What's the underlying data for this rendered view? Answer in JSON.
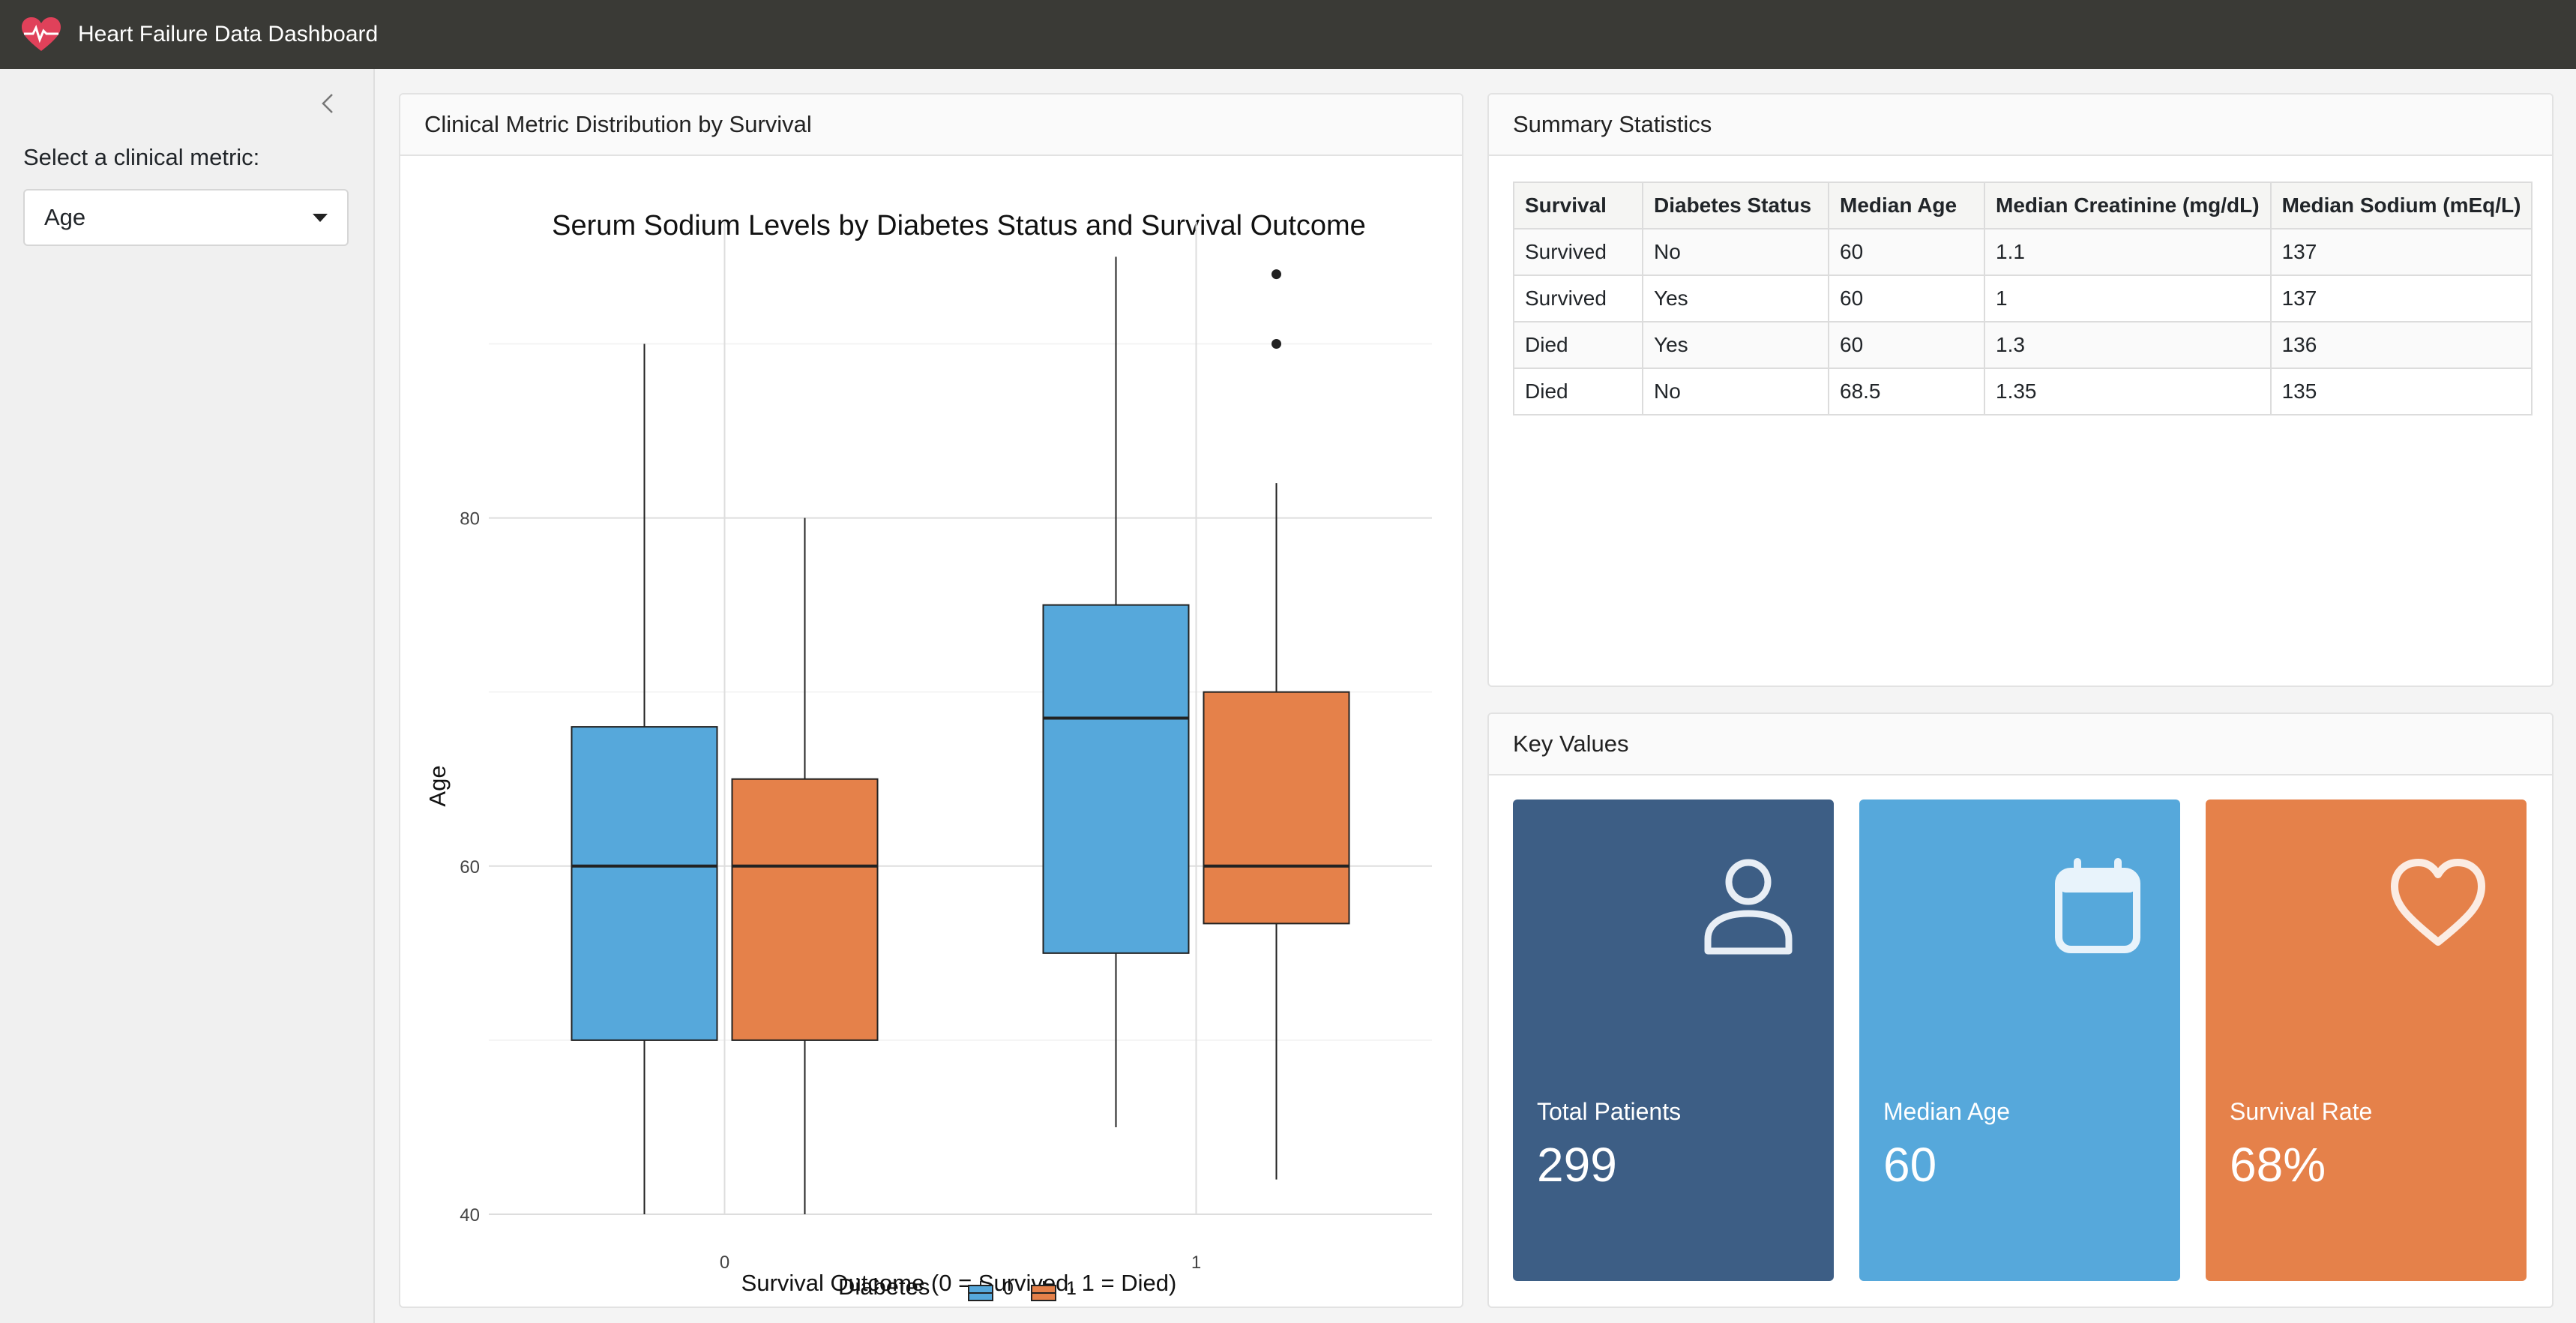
{
  "app": {
    "title": "Heart Failure Data Dashboard",
    "logo_icon": "heart-pulse-icon",
    "brand_color": "#e0415a",
    "header_color": "#3a3a36"
  },
  "sidebar": {
    "collapse_icon": "chevron-left-icon",
    "metric_label": "Select a clinical metric:",
    "metric_selected": "Age"
  },
  "plot_card": {
    "title": "Clinical Metric Distribution by Survival"
  },
  "chart_data": {
    "type": "box",
    "title": "Serum Sodium Levels by Diabetes Status and Survival Outcome",
    "xlabel": "Survival Outcome (0 = Survived, 1 = Died)",
    "ylabel": "Age",
    "categories": [
      "0",
      "1"
    ],
    "ylim": [
      40,
      97
    ],
    "yticks": [
      40,
      60,
      80
    ],
    "grid": true,
    "legend": {
      "title": "Diabetes",
      "position": "bottom"
    },
    "series": [
      {
        "name": "0",
        "color": "#56a8db",
        "boxes": [
          {
            "category": "0",
            "lower_whisker": 40,
            "q1": 50,
            "median": 60,
            "q3": 68,
            "upper_whisker": 90,
            "outliers": []
          },
          {
            "category": "1",
            "lower_whisker": 45,
            "q1": 55,
            "median": 68.5,
            "q3": 75,
            "upper_whisker": 95,
            "outliers": []
          }
        ]
      },
      {
        "name": "1",
        "color": "#e5814a",
        "boxes": [
          {
            "category": "0",
            "lower_whisker": 40,
            "q1": 50,
            "median": 60,
            "q3": 65,
            "upper_whisker": 80,
            "outliers": []
          },
          {
            "category": "1",
            "lower_whisker": 42,
            "q1": 56.7,
            "median": 60,
            "q3": 70,
            "upper_whisker": 82,
            "outliers": [
              90,
              94
            ]
          }
        ]
      }
    ]
  },
  "summary": {
    "title": "Summary Statistics",
    "headers": [
      "Survival",
      "Diabetes Status",
      "Median Age",
      "Median Creatinine (mg/dL)",
      "Median Sodium (mEq/L)"
    ],
    "rows": [
      [
        "Survived",
        "No",
        "60",
        "1.1",
        "137"
      ],
      [
        "Survived",
        "Yes",
        "60",
        "1",
        "137"
      ],
      [
        "Died",
        "Yes",
        "60",
        "1.3",
        "136"
      ],
      [
        "Died",
        "No",
        "68.5",
        "1.35",
        "135"
      ]
    ]
  },
  "key_values": {
    "title": "Key Values",
    "boxes": [
      {
        "label": "Total Patients",
        "value": "299",
        "icon": "person-icon",
        "color": "#3d5e85"
      },
      {
        "label": "Median Age",
        "value": "60",
        "icon": "calendar-icon",
        "color": "#56a8db"
      },
      {
        "label": "Survival Rate",
        "value": "68%",
        "icon": "heart-icon",
        "color": "#e5814a"
      }
    ]
  }
}
